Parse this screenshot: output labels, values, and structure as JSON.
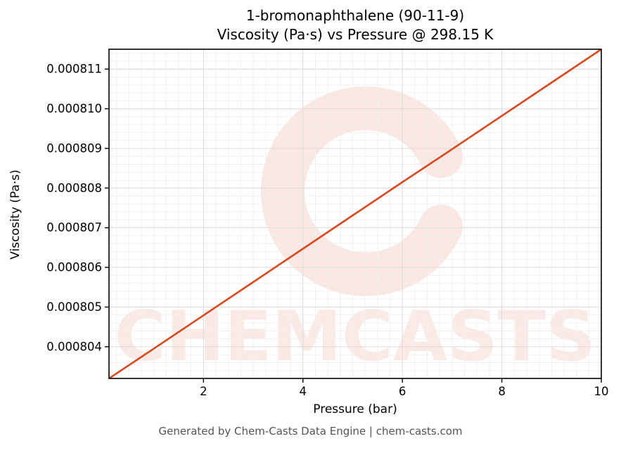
{
  "title": {
    "line1": "1-bromonaphthalene (90-11-9)",
    "line2": "Viscosity (Pa·s) vs Pressure @ 298.15 K"
  },
  "footer": "Generated by Chem-Casts Data Engine | chem-casts.com",
  "watermark": {
    "text": "CHEMCASTS",
    "color": "#d9481f",
    "opacity": 0.12
  },
  "chart_data": {
    "type": "line",
    "title": "1-bromonaphthalene (90-11-9) Viscosity (Pa·s) vs Pressure @ 298.15 K",
    "xlabel": "Pressure (bar)",
    "ylabel": "Viscosity (Pa·s)",
    "xlim": [
      0.1,
      10
    ],
    "ylim": [
      0.0008032,
      0.0008115
    ],
    "grid": true,
    "legend": "none",
    "line_color": "#d9481f",
    "line_width": 2.6,
    "x": [
      0.1,
      1,
      2,
      3,
      4,
      5,
      6,
      7,
      8,
      9,
      10
    ],
    "y": [
      0.0008032,
      0.00080395,
      0.00080479,
      0.00080563,
      0.00080647,
      0.00080731,
      0.00080815,
      0.00080898,
      0.00080982,
      0.00081066,
      0.0008115
    ],
    "xticks": {
      "values": [
        2,
        4,
        6,
        8,
        10
      ],
      "labels": [
        "2",
        "4",
        "6",
        "8",
        "10"
      ]
    },
    "yticks": {
      "values": [
        0.000804,
        0.000805,
        0.000806,
        0.000807,
        0.000808,
        0.000809,
        0.00081,
        0.000811
      ],
      "labels": [
        "0.000804",
        "0.000805",
        "0.000806",
        "0.000807",
        "0.000808",
        "0.000809",
        "0.000810",
        "0.000811"
      ]
    },
    "minor_grid": {
      "x_step": 0.25,
      "y_step": 2e-07
    }
  }
}
